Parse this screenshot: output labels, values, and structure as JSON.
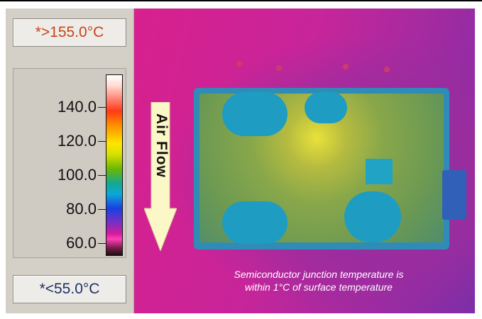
{
  "scale": {
    "max_readout": "*>155.0°C",
    "min_readout": "*<55.0°C",
    "ticks": [
      "140.0",
      "120.0",
      "100.0",
      "80.0",
      "60.0"
    ]
  },
  "thermal": {
    "airflow_label": "Air Flow",
    "caption_line1": "Semiconductor junction temperature is",
    "caption_line2": "within 1°C of surface temperature"
  }
}
